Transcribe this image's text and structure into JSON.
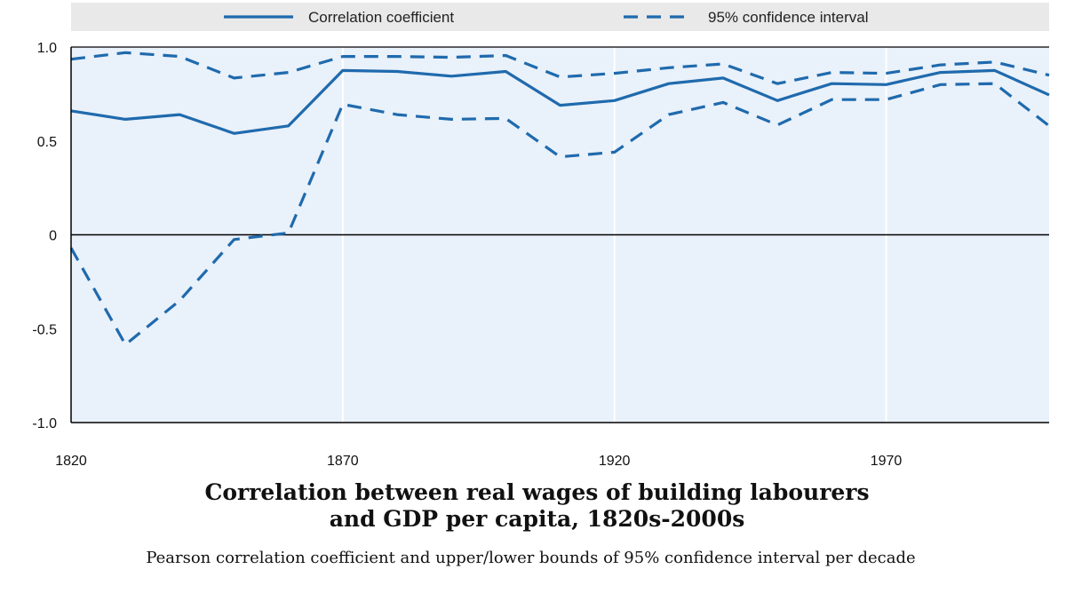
{
  "chart_data": {
    "type": "line",
    "title_lines": [
      "Correlation between real wages of building labourers",
      "and GDP per capita, 1820s-2000s"
    ],
    "subtitle": "Pearson correlation coefficient and upper/lower bounds of 95% confidence interval per decade",
    "xlabel": "",
    "ylabel": "",
    "x": [
      1820,
      1830,
      1840,
      1850,
      1860,
      1870,
      1880,
      1890,
      1900,
      1910,
      1920,
      1930,
      1940,
      1950,
      1960,
      1970,
      1980,
      1990,
      2000
    ],
    "xlim": [
      1820,
      2000
    ],
    "ylim": [
      -1.0,
      1.0
    ],
    "x_ticks": [
      1820,
      1870,
      1920,
      1970
    ],
    "x_tick_labels": [
      "1820",
      "1870",
      "1920",
      "1970"
    ],
    "y_ticks": [
      1.0,
      0.5,
      0,
      -0.5,
      -1.0
    ],
    "y_tick_labels": [
      "1.0",
      "0.5",
      "0",
      "-0.5",
      "-1.0"
    ],
    "grid": "vertical",
    "legend_position": "top",
    "series": [
      {
        "name": "Correlation coefficient",
        "style": "solid",
        "color": "#1f6aad",
        "values": [
          0.66,
          0.615,
          0.64,
          0.54,
          0.58,
          0.875,
          0.87,
          0.845,
          0.87,
          0.69,
          0.715,
          0.805,
          0.835,
          0.715,
          0.805,
          0.8,
          0.865,
          0.875,
          0.745
        ]
      },
      {
        "name": "95% confidence interval",
        "legend_entry": true,
        "style": "dashed",
        "color": "#1f6aad",
        "values": [
          0.935,
          0.97,
          0.95,
          0.835,
          0.865,
          0.95,
          0.95,
          0.945,
          0.955,
          0.84,
          0.86,
          0.89,
          0.91,
          0.805,
          0.865,
          0.86,
          0.905,
          0.92,
          0.85
        ]
      },
      {
        "name": "",
        "legend_entry": false,
        "style": "dashed",
        "color": "#1f6aad",
        "values": [
          -0.07,
          -0.585,
          -0.35,
          -0.025,
          0.01,
          0.695,
          0.64,
          0.615,
          0.62,
          0.415,
          0.44,
          0.64,
          0.705,
          0.585,
          0.72,
          0.72,
          0.8,
          0.805,
          0.58
        ]
      }
    ],
    "colors": {
      "plot_background": "#e9f1fa",
      "legend_background": "#e9e9e9",
      "grid": "#ffffff",
      "zero_line": "#000000",
      "frame": "#000000"
    }
  }
}
